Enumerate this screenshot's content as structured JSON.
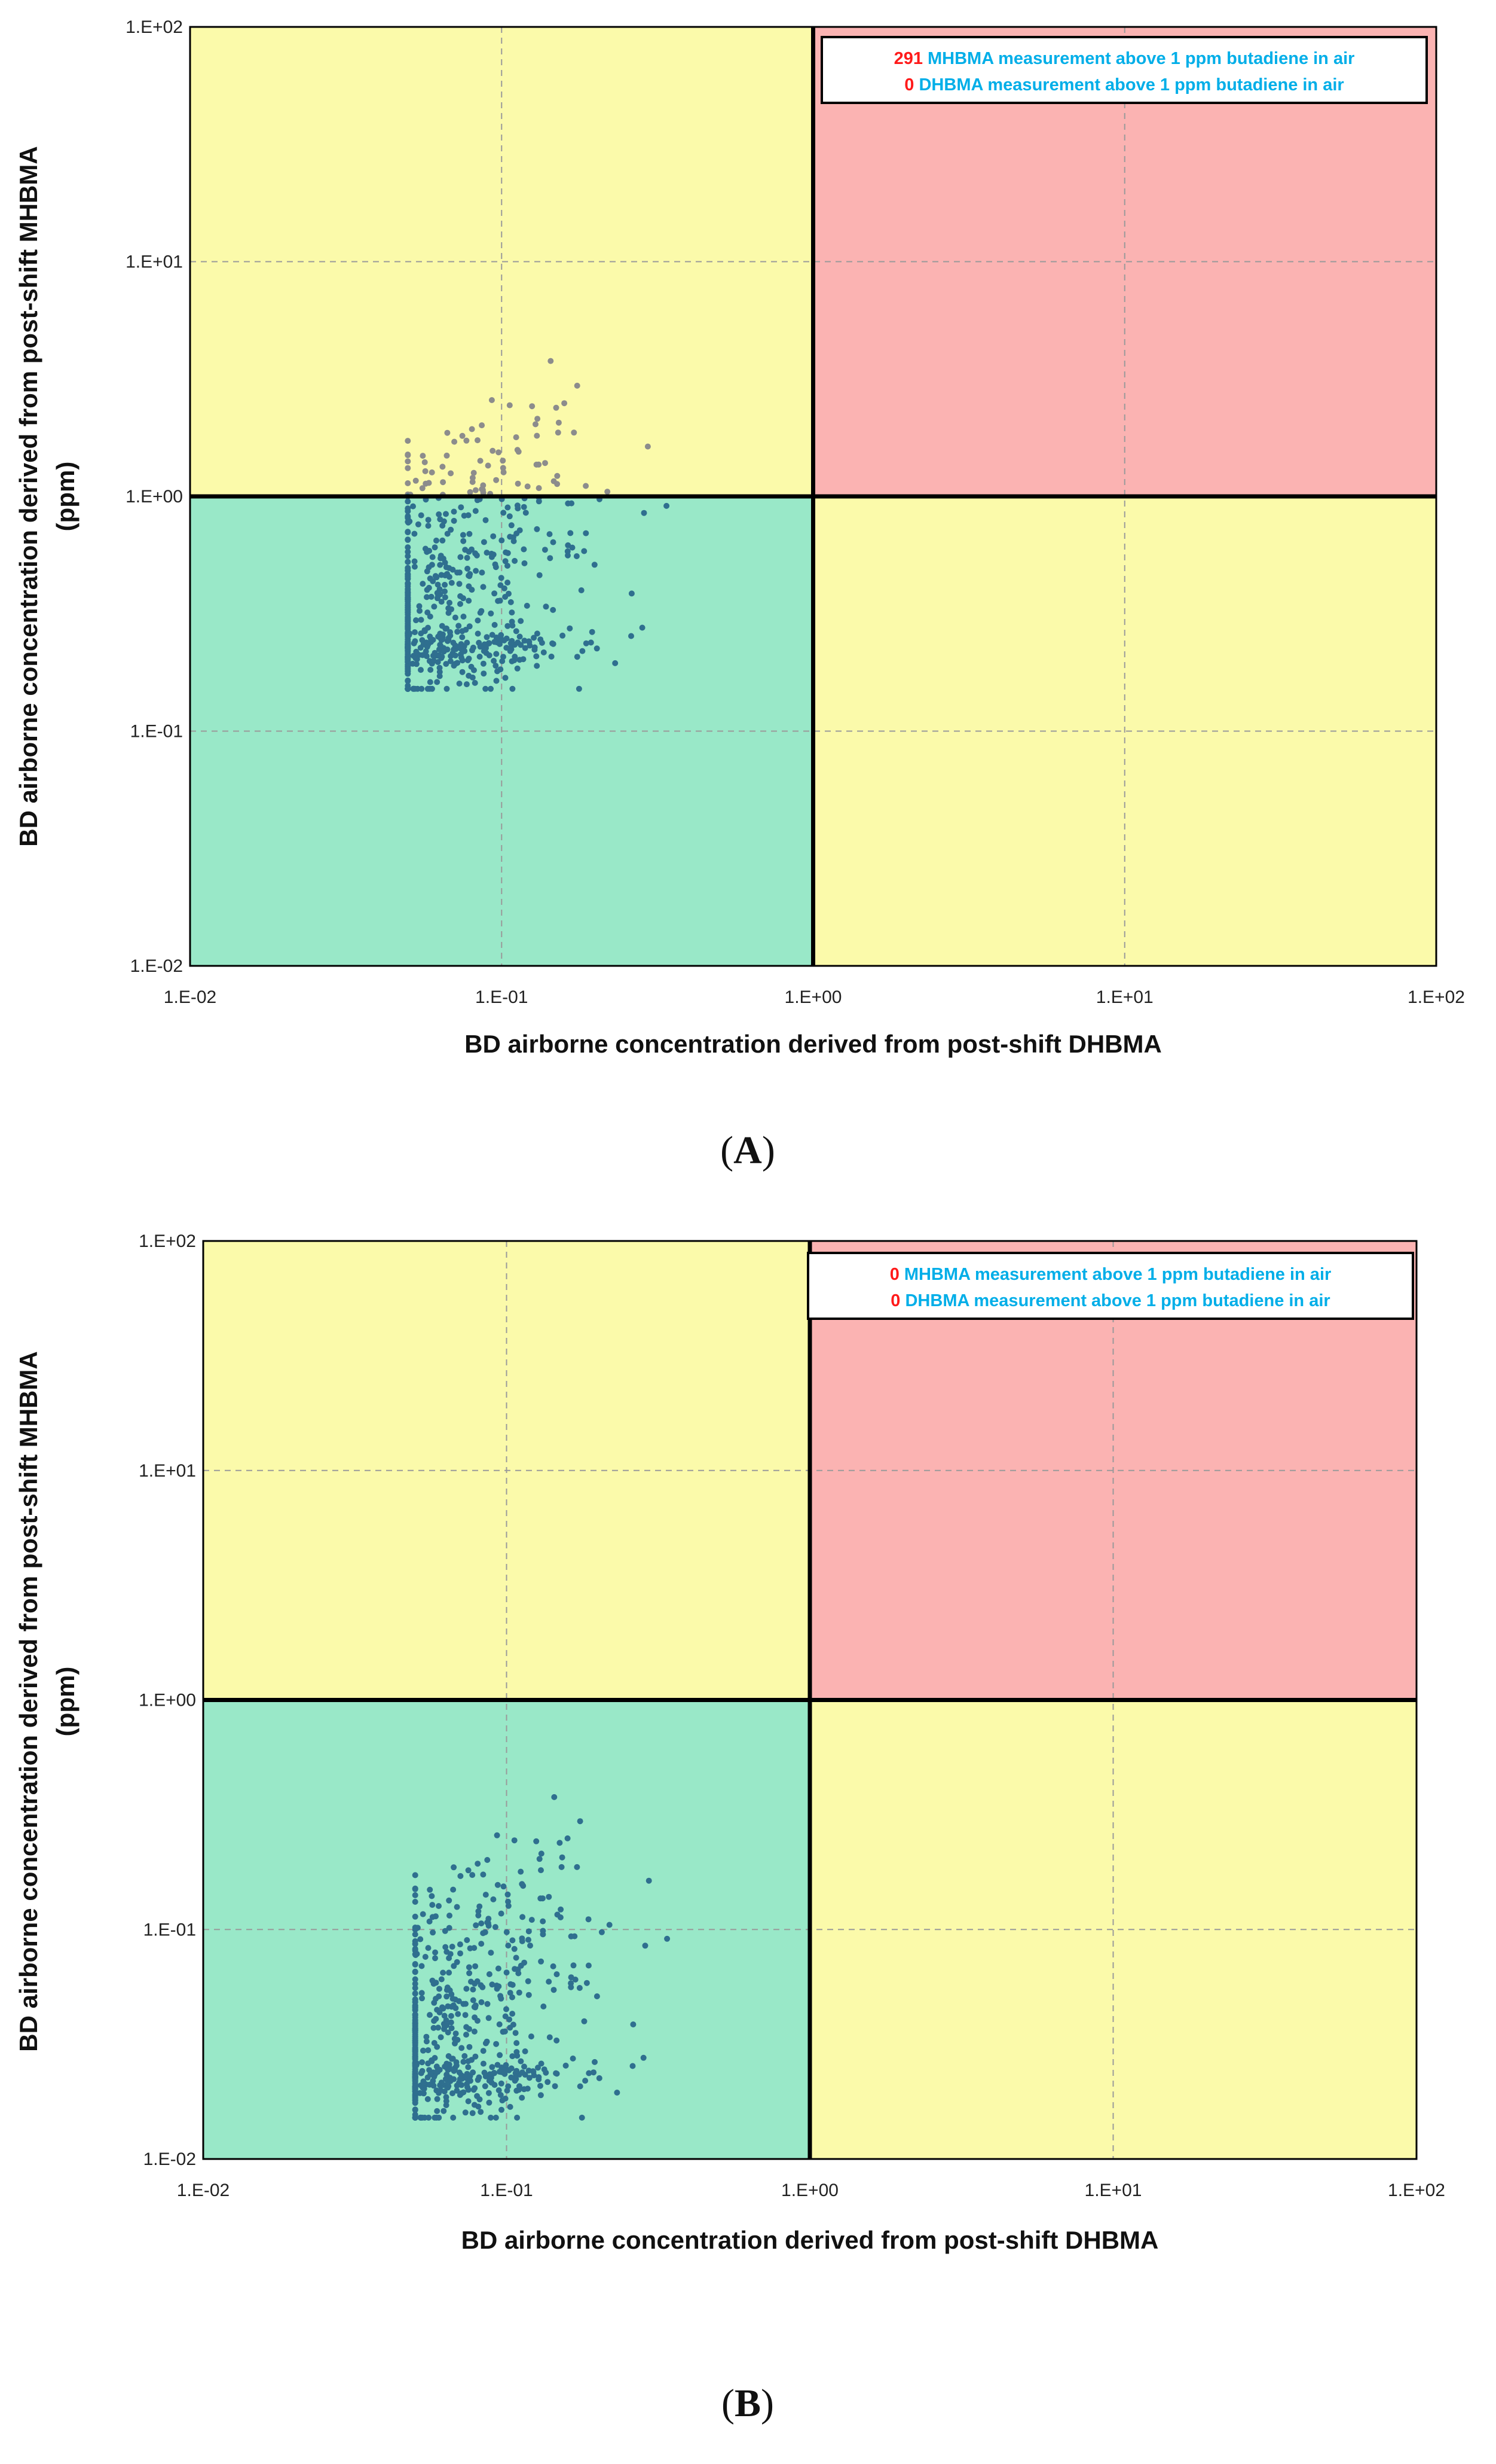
{
  "colors": {
    "safe": "#99e8c8",
    "caution": "#fbfaaa",
    "danger": "#fbb3b2",
    "point_dark": "#2f6f8f",
    "point_gray": "#8c8c8c",
    "count_red": "#ff1a1a",
    "legend_blue": "#00aee8",
    "grid": "#9a9a9a"
  },
  "chart_data": [
    {
      "panel": "(A)",
      "panel_letter": "A",
      "type": "scatter",
      "x_scale": "log",
      "y_scale": "log",
      "xlim": [
        0.01,
        100
      ],
      "ylim": [
        0.01,
        100
      ],
      "threshold": 1,
      "x_ticks": [
        "1.E-02",
        "1.E-01",
        "1.E+00",
        "1.E+01",
        "1.E+02"
      ],
      "y_ticks": [
        "1.E-02",
        "1.E-01",
        "1.E+00",
        "1.E+01",
        "1.E+02"
      ],
      "xlabel": "BD airborne concentration derived from post-shift DHBMA",
      "ylabel": [
        "BD airborne concentration derived from post-shift MHBMA",
        "(ppm)"
      ],
      "legend": [
        {
          "count": "291",
          "text": "MHBMA measurement above 1 ppm butadiene in air"
        },
        {
          "count": "0",
          "text": "DHBMA measurement above 1 ppm butadiene in air"
        }
      ],
      "cloud": {
        "x_range": [
          0.05,
          0.7
        ],
        "y_range": [
          0.15,
          5.0
        ],
        "n_points": 640,
        "seed": 7,
        "y_shift": 1.0,
        "gray_above": 1.0
      }
    },
    {
      "panel": "(B)",
      "panel_letter": "B",
      "type": "scatter",
      "x_scale": "log",
      "y_scale": "log",
      "xlim": [
        0.01,
        100
      ],
      "ylim": [
        0.01,
        100
      ],
      "threshold": 1,
      "x_ticks": [
        "1.E-02",
        "1.E-01",
        "1.E+00",
        "1.E+01",
        "1.E+02"
      ],
      "y_ticks": [
        "1.E-02",
        "1.E-01",
        "1.E+00",
        "1.E+01",
        "1.E+02"
      ],
      "xlabel": "BD airborne concentration derived from post-shift DHBMA",
      "ylabel": [
        "BD airborne concentration derived from post-shift MHBMA",
        "(ppm)"
      ],
      "legend": [
        {
          "count": "0",
          "text": "MHBMA measurement above 1 ppm butadiene in air"
        },
        {
          "count": "0",
          "text": "DHBMA measurement above 1 ppm butadiene in air"
        }
      ],
      "cloud": {
        "x_range": [
          0.05,
          0.7
        ],
        "y_range": [
          0.015,
          0.5
        ],
        "n_points": 640,
        "seed": 7,
        "y_shift": 0.1,
        "gray_above": null
      }
    }
  ]
}
